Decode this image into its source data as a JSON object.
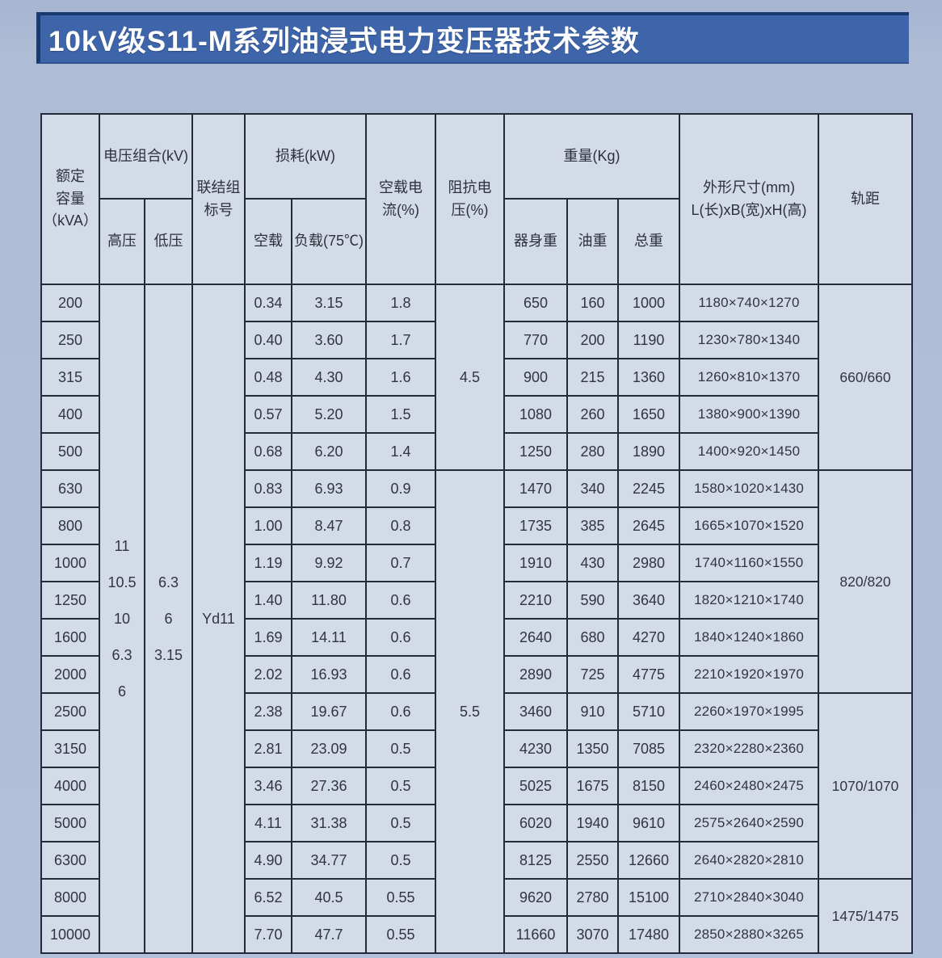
{
  "title": "10kV级S11-M系列油浸式电力变压器技术参数",
  "colors": {
    "banner_blue": "#3e65aa",
    "banner_edge_navy": "#1a3a72",
    "page_background": "#aebcd6",
    "cell_background": "#d3dbe8",
    "table_border": "#232b3a",
    "title_text": "#ffffff",
    "cell_text": "#32353e"
  },
  "table": {
    "columns": {
      "rated_capacity": "额定\n容量\n（kVA）",
      "voltage_combo": "电压组合(kV)",
      "hv": "高压",
      "lv": "低压",
      "vector_group": "联结组\n标号",
      "loss": "损耗(kW)",
      "no_load": "空载",
      "load": "负载(75℃)",
      "no_load_current": "空载电\n流(%)",
      "impedance": "阻抗电\n压(%)",
      "weight": "重量(Kg)",
      "body_weight": "器身重",
      "oil_weight": "油重",
      "total_weight": "总重",
      "dimensions": "外形尺寸(mm)\nL(长)xB(宽)xH(高)",
      "gauge": "轨距"
    },
    "merged": {
      "hv_values": "11\n10.5\n10\n6.3\n6",
      "lv_values": "6.3\n6\n3.15",
      "vector_group_value": "Yd11",
      "impedance_groups": [
        {
          "value": "4.5",
          "start": 0,
          "rowspan": 5
        },
        {
          "value": "5.5",
          "start": 5,
          "rowspan": 13
        }
      ],
      "gauge_groups": [
        {
          "value": "660/660",
          "start": 0,
          "rowspan": 5
        },
        {
          "value": "820/820",
          "start": 5,
          "rowspan": 6
        },
        {
          "value": "1070/1070",
          "start": 11,
          "rowspan": 5
        },
        {
          "value": "1475/1475",
          "start": 16,
          "rowspan": 2
        }
      ]
    },
    "rows": [
      {
        "capacity": "200",
        "no_load": "0.34",
        "load": "3.15",
        "current": "1.8",
        "body": "650",
        "oil": "160",
        "total": "1000",
        "dims": "1180×740×1270"
      },
      {
        "capacity": "250",
        "no_load": "0.40",
        "load": "3.60",
        "current": "1.7",
        "body": "770",
        "oil": "200",
        "total": "1190",
        "dims": "1230×780×1340"
      },
      {
        "capacity": "315",
        "no_load": "0.48",
        "load": "4.30",
        "current": "1.6",
        "body": "900",
        "oil": "215",
        "total": "1360",
        "dims": "1260×810×1370"
      },
      {
        "capacity": "400",
        "no_load": "0.57",
        "load": "5.20",
        "current": "1.5",
        "body": "1080",
        "oil": "260",
        "total": "1650",
        "dims": "1380×900×1390"
      },
      {
        "capacity": "500",
        "no_load": "0.68",
        "load": "6.20",
        "current": "1.4",
        "body": "1250",
        "oil": "280",
        "total": "1890",
        "dims": "1400×920×1450"
      },
      {
        "capacity": "630",
        "no_load": "0.83",
        "load": "6.93",
        "current": "0.9",
        "body": "1470",
        "oil": "340",
        "total": "2245",
        "dims": "1580×1020×1430"
      },
      {
        "capacity": "800",
        "no_load": "1.00",
        "load": "8.47",
        "current": "0.8",
        "body": "1735",
        "oil": "385",
        "total": "2645",
        "dims": "1665×1070×1520"
      },
      {
        "capacity": "1000",
        "no_load": "1.19",
        "load": "9.92",
        "current": "0.7",
        "body": "1910",
        "oil": "430",
        "total": "2980",
        "dims": "1740×1160×1550"
      },
      {
        "capacity": "1250",
        "no_load": "1.40",
        "load": "11.80",
        "current": "0.6",
        "body": "2210",
        "oil": "590",
        "total": "3640",
        "dims": "1820×1210×1740"
      },
      {
        "capacity": "1600",
        "no_load": "1.69",
        "load": "14.11",
        "current": "0.6",
        "body": "2640",
        "oil": "680",
        "total": "4270",
        "dims": "1840×1240×1860"
      },
      {
        "capacity": "2000",
        "no_load": "2.02",
        "load": "16.93",
        "current": "0.6",
        "body": "2890",
        "oil": "725",
        "total": "4775",
        "dims": "2210×1920×1970"
      },
      {
        "capacity": "2500",
        "no_load": "2.38",
        "load": "19.67",
        "current": "0.6",
        "body": "3460",
        "oil": "910",
        "total": "5710",
        "dims": "2260×1970×1995"
      },
      {
        "capacity": "3150",
        "no_load": "2.81",
        "load": "23.09",
        "current": "0.5",
        "body": "4230",
        "oil": "1350",
        "total": "7085",
        "dims": "2320×2280×2360"
      },
      {
        "capacity": "4000",
        "no_load": "3.46",
        "load": "27.36",
        "current": "0.5",
        "body": "5025",
        "oil": "1675",
        "total": "8150",
        "dims": "2460×2480×2475"
      },
      {
        "capacity": "5000",
        "no_load": "4.11",
        "load": "31.38",
        "current": "0.5",
        "body": "6020",
        "oil": "1940",
        "total": "9610",
        "dims": "2575×2640×2590"
      },
      {
        "capacity": "6300",
        "no_load": "4.90",
        "load": "34.77",
        "current": "0.5",
        "body": "8125",
        "oil": "2550",
        "total": "12660",
        "dims": "2640×2820×2810"
      },
      {
        "capacity": "8000",
        "no_load": "6.52",
        "load": "40.5",
        "current": "0.55",
        "body": "9620",
        "oil": "2780",
        "total": "15100",
        "dims": "2710×2840×3040"
      },
      {
        "capacity": "10000",
        "no_load": "7.70",
        "load": "47.7",
        "current": "0.55",
        "body": "11660",
        "oil": "3070",
        "total": "17480",
        "dims": "2850×2880×3265"
      }
    ]
  }
}
